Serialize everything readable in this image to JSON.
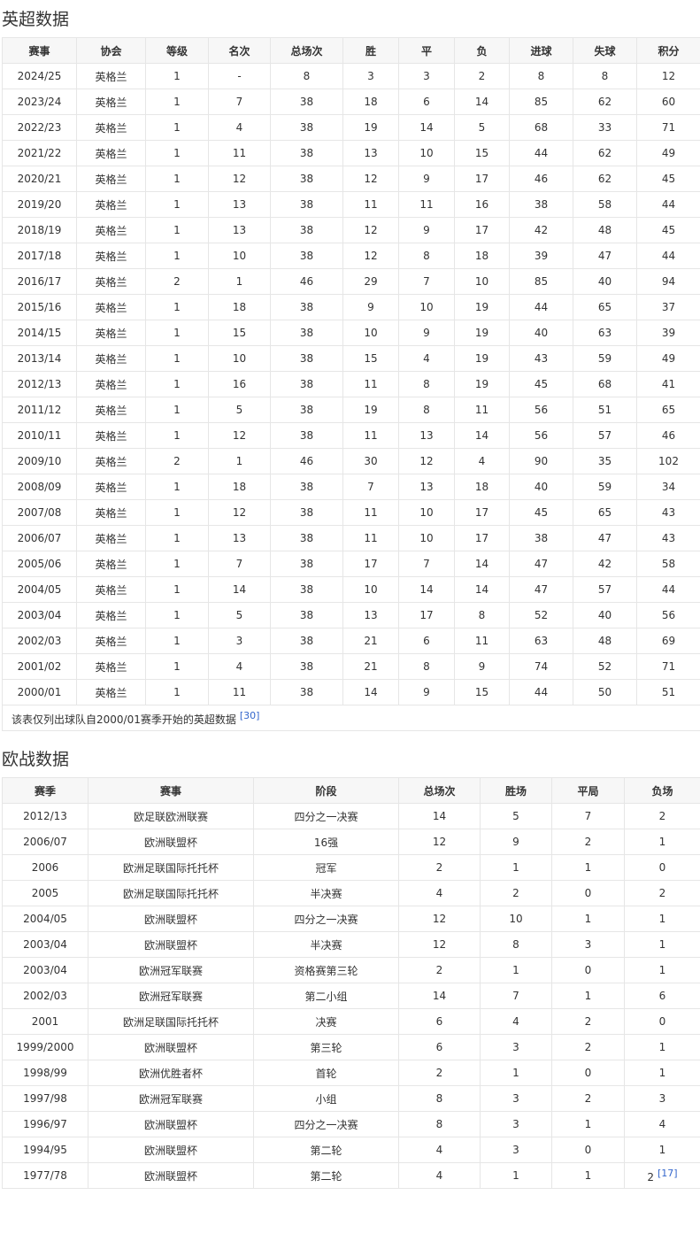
{
  "premier_league": {
    "title": "英超数据",
    "headers": [
      "赛事",
      "协会",
      "等级",
      "名次",
      "总场次",
      "胜",
      "平",
      "负",
      "进球",
      "失球",
      "积分"
    ],
    "rows": [
      [
        "2024/25",
        "英格兰",
        "1",
        "-",
        "8",
        "3",
        "3",
        "2",
        "8",
        "8",
        "12"
      ],
      [
        "2023/24",
        "英格兰",
        "1",
        "7",
        "38",
        "18",
        "6",
        "14",
        "85",
        "62",
        "60"
      ],
      [
        "2022/23",
        "英格兰",
        "1",
        "4",
        "38",
        "19",
        "14",
        "5",
        "68",
        "33",
        "71"
      ],
      [
        "2021/22",
        "英格兰",
        "1",
        "11",
        "38",
        "13",
        "10",
        "15",
        "44",
        "62",
        "49"
      ],
      [
        "2020/21",
        "英格兰",
        "1",
        "12",
        "38",
        "12",
        "9",
        "17",
        "46",
        "62",
        "45"
      ],
      [
        "2019/20",
        "英格兰",
        "1",
        "13",
        "38",
        "11",
        "11",
        "16",
        "38",
        "58",
        "44"
      ],
      [
        "2018/19",
        "英格兰",
        "1",
        "13",
        "38",
        "12",
        "9",
        "17",
        "42",
        "48",
        "45"
      ],
      [
        "2017/18",
        "英格兰",
        "1",
        "10",
        "38",
        "12",
        "8",
        "18",
        "39",
        "47",
        "44"
      ],
      [
        "2016/17",
        "英格兰",
        "2",
        "1",
        "46",
        "29",
        "7",
        "10",
        "85",
        "40",
        "94"
      ],
      [
        "2015/16",
        "英格兰",
        "1",
        "18",
        "38",
        "9",
        "10",
        "19",
        "44",
        "65",
        "37"
      ],
      [
        "2014/15",
        "英格兰",
        "1",
        "15",
        "38",
        "10",
        "9",
        "19",
        "40",
        "63",
        "39"
      ],
      [
        "2013/14",
        "英格兰",
        "1",
        "10",
        "38",
        "15",
        "4",
        "19",
        "43",
        "59",
        "49"
      ],
      [
        "2012/13",
        "英格兰",
        "1",
        "16",
        "38",
        "11",
        "8",
        "19",
        "45",
        "68",
        "41"
      ],
      [
        "2011/12",
        "英格兰",
        "1",
        "5",
        "38",
        "19",
        "8",
        "11",
        "56",
        "51",
        "65"
      ],
      [
        "2010/11",
        "英格兰",
        "1",
        "12",
        "38",
        "11",
        "13",
        "14",
        "56",
        "57",
        "46"
      ],
      [
        "2009/10",
        "英格兰",
        "2",
        "1",
        "46",
        "30",
        "12",
        "4",
        "90",
        "35",
        "102"
      ],
      [
        "2008/09",
        "英格兰",
        "1",
        "18",
        "38",
        "7",
        "13",
        "18",
        "40",
        "59",
        "34"
      ],
      [
        "2007/08",
        "英格兰",
        "1",
        "12",
        "38",
        "11",
        "10",
        "17",
        "45",
        "65",
        "43"
      ],
      [
        "2006/07",
        "英格兰",
        "1",
        "13",
        "38",
        "11",
        "10",
        "17",
        "38",
        "47",
        "43"
      ],
      [
        "2005/06",
        "英格兰",
        "1",
        "7",
        "38",
        "17",
        "7",
        "14",
        "47",
        "42",
        "58"
      ],
      [
        "2004/05",
        "英格兰",
        "1",
        "14",
        "38",
        "10",
        "14",
        "14",
        "47",
        "57",
        "44"
      ],
      [
        "2003/04",
        "英格兰",
        "1",
        "5",
        "38",
        "13",
        "17",
        "8",
        "52",
        "40",
        "56"
      ],
      [
        "2002/03",
        "英格兰",
        "1",
        "3",
        "38",
        "21",
        "6",
        "11",
        "63",
        "48",
        "69"
      ],
      [
        "2001/02",
        "英格兰",
        "1",
        "4",
        "38",
        "21",
        "8",
        "9",
        "74",
        "52",
        "71"
      ],
      [
        "2000/01",
        "英格兰",
        "1",
        "11",
        "38",
        "14",
        "9",
        "15",
        "44",
        "50",
        "51"
      ]
    ],
    "footnote": "该表仅列出球队自2000/01赛季开始的英超数据",
    "footnote_ref": "[30]"
  },
  "european": {
    "title": "欧战数据",
    "headers": [
      "赛季",
      "赛事",
      "阶段",
      "总场次",
      "胜场",
      "平局",
      "负场"
    ],
    "rows": [
      [
        "2012/13",
        "欧足联欧洲联赛",
        "四分之一决赛",
        "14",
        "5",
        "7",
        "2"
      ],
      [
        "2006/07",
        "欧洲联盟杯",
        "16强",
        "12",
        "9",
        "2",
        "1"
      ],
      [
        "2006",
        "欧洲足联国际托托杯",
        "冠军",
        "2",
        "1",
        "1",
        "0"
      ],
      [
        "2005",
        "欧洲足联国际托托杯",
        "半决赛",
        "4",
        "2",
        "0",
        "2"
      ],
      [
        "2004/05",
        "欧洲联盟杯",
        "四分之一决赛",
        "12",
        "10",
        "1",
        "1"
      ],
      [
        "2003/04",
        "欧洲联盟杯",
        "半决赛",
        "12",
        "8",
        "3",
        "1"
      ],
      [
        "2003/04",
        "欧洲冠军联赛",
        "资格赛第三轮",
        "2",
        "1",
        "0",
        "1"
      ],
      [
        "2002/03",
        "欧洲冠军联赛",
        "第二小组",
        "14",
        "7",
        "1",
        "6"
      ],
      [
        "2001",
        "欧洲足联国际托托杯",
        "决赛",
        "6",
        "4",
        "2",
        "0"
      ],
      [
        "1999/2000",
        "欧洲联盟杯",
        "第三轮",
        "6",
        "3",
        "2",
        "1"
      ],
      [
        "1998/99",
        "欧洲优胜者杯",
        "首轮",
        "2",
        "1",
        "0",
        "1"
      ],
      [
        "1997/98",
        "欧洲冠军联赛",
        "小组",
        "8",
        "3",
        "2",
        "3"
      ],
      [
        "1996/97",
        "欧洲联盟杯",
        "四分之一决赛",
        "8",
        "3",
        "1",
        "4"
      ],
      [
        "1994/95",
        "欧洲联盟杯",
        "第二轮",
        "4",
        "3",
        "0",
        "1"
      ],
      [
        "1977/78",
        "欧洲联盟杯",
        "第二轮",
        "4",
        "1",
        "1",
        "2"
      ]
    ],
    "last_cell_ref": "[17]"
  },
  "colors": {
    "text": "#333333",
    "border": "#e6e6e6",
    "header_bg": "#f7f7f7",
    "link": "#3366cc"
  }
}
